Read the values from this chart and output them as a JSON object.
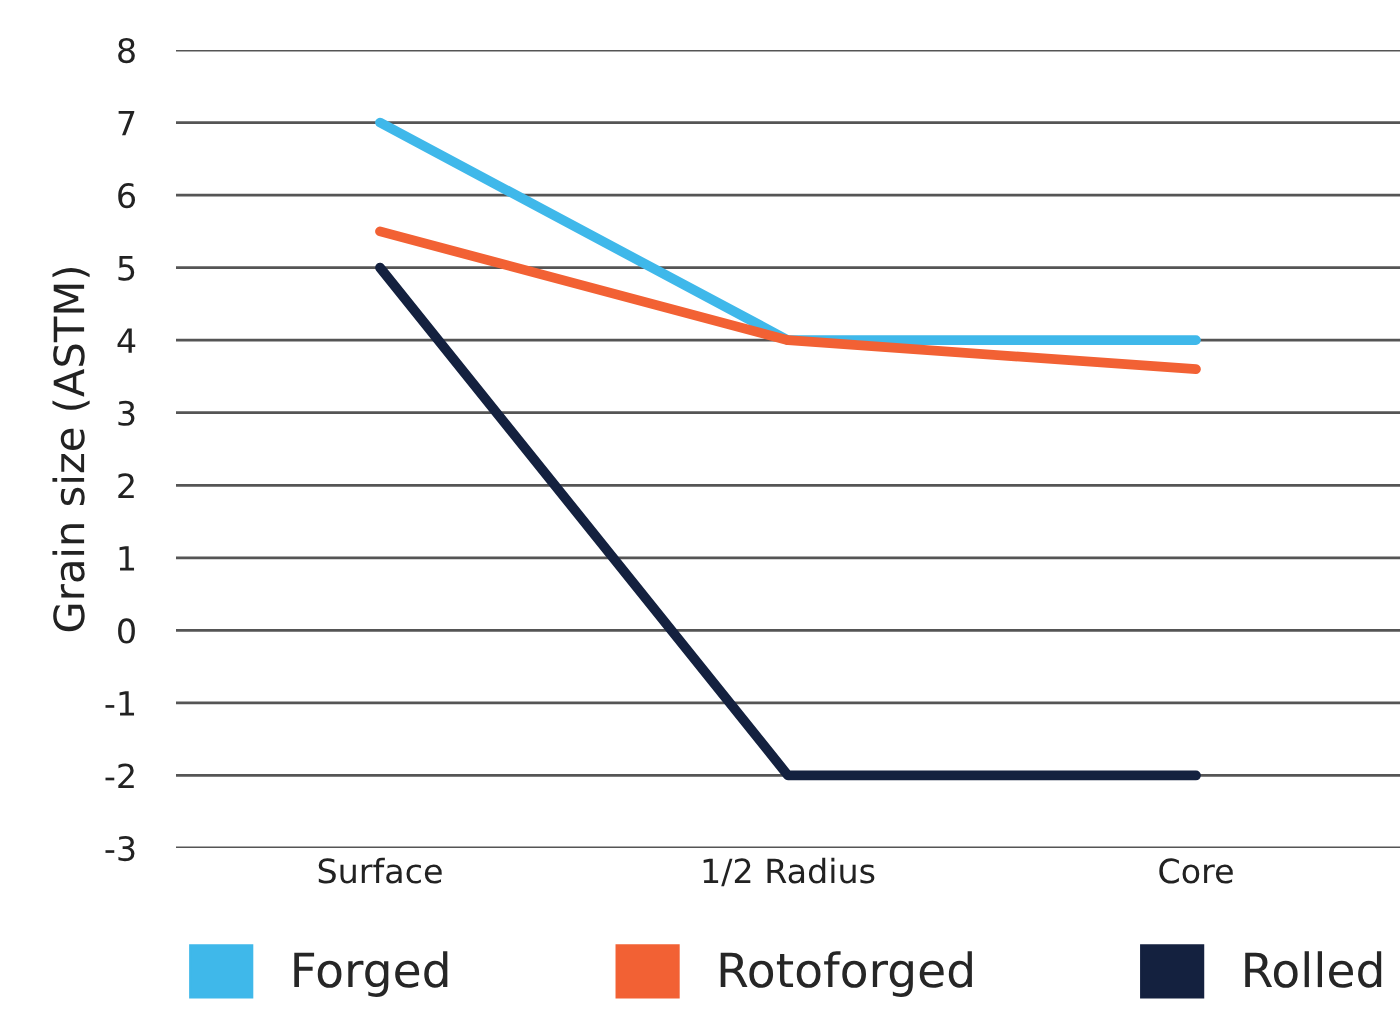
{
  "chart_data": {
    "type": "line",
    "ylabel": "Grain size (ASTM)",
    "categories": [
      "Surface",
      "1/2 Radius",
      "Core"
    ],
    "series": [
      {
        "name": "Forged",
        "color": "#3fb8ea",
        "values": [
          7,
          4,
          4
        ]
      },
      {
        "name": "Rotoforged",
        "color": "#f26134",
        "values": [
          5.5,
          4,
          3.6
        ]
      },
      {
        "name": "Rolled",
        "color": "#14213f",
        "values": [
          5,
          -2,
          -2
        ]
      }
    ],
    "ylim": [
      -3,
      8
    ],
    "yticks": [
      -3,
      -2,
      -1,
      0,
      1,
      2,
      3,
      4,
      5,
      6,
      7,
      8
    ],
    "grid": "y",
    "legend": "bottom",
    "marker": "none",
    "line_style": "solid"
  }
}
